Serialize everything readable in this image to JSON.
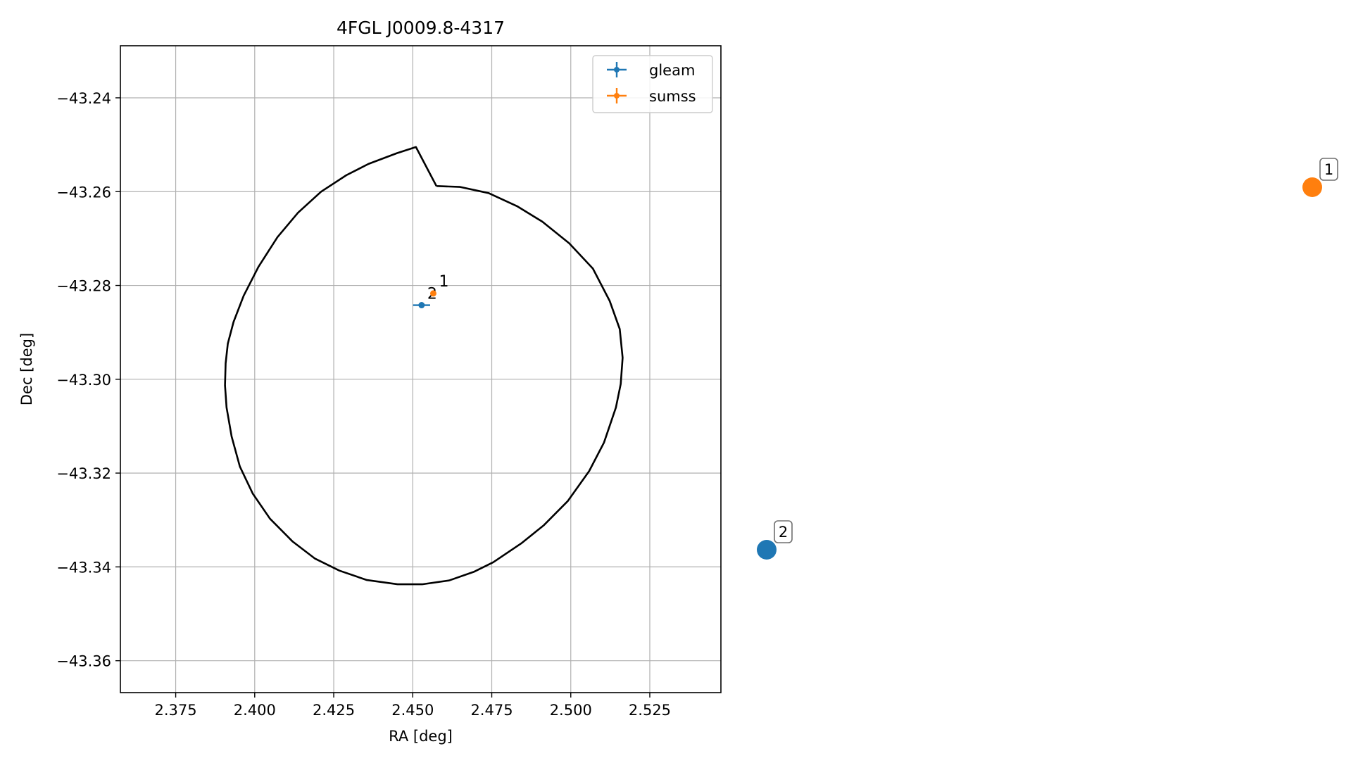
{
  "chart_data": {
    "type": "scatter",
    "title": "4FGL J0009.8-4317",
    "xlabel": "RA [deg]",
    "ylabel": "Dec [deg]",
    "xlim": [
      2.3575,
      2.5475
    ],
    "ylim": [
      -43.3668,
      -43.2289
    ],
    "xticks": [
      2.375,
      2.4,
      2.425,
      2.45,
      2.475,
      2.5,
      2.525
    ],
    "xtick_labels": [
      "2.375",
      "2.400",
      "2.425",
      "2.450",
      "2.475",
      "2.500",
      "2.525"
    ],
    "yticks": [
      -43.24,
      -43.26,
      -43.28,
      -43.3,
      -43.32,
      -43.34,
      -43.36
    ],
    "ytick_labels": [
      "−43.24",
      "−43.26",
      "−43.28",
      "−43.30",
      "−43.32",
      "−43.34",
      "−43.36"
    ],
    "grid": true,
    "legend_position": "top-right",
    "series": [
      {
        "name": "gleam",
        "color": "#1f77b4",
        "points": [
          {
            "x": 2.4528,
            "y": -43.2842,
            "xerr": 0.0027,
            "yerr": 0.0004,
            "label": "2"
          }
        ]
      },
      {
        "name": "sumss",
        "color": "#ff7f0e",
        "points": [
          {
            "x": 2.4565,
            "y": -43.2817,
            "xerr": 0.0007,
            "yerr": 0.0004,
            "label": "1"
          }
        ]
      }
    ],
    "ellipse": {
      "color": "#000000",
      "polygon": [
        [
          2.4575,
          -43.2588
        ],
        [
          2.465,
          -43.259
        ],
        [
          2.474,
          -43.2603
        ],
        [
          2.483,
          -43.2631
        ],
        [
          2.491,
          -43.2664
        ],
        [
          2.4995,
          -43.271
        ],
        [
          2.507,
          -43.2764
        ],
        [
          2.5123,
          -43.2833
        ],
        [
          2.5155,
          -43.2893
        ],
        [
          2.5164,
          -43.2954
        ],
        [
          2.5158,
          -43.301
        ],
        [
          2.5143,
          -43.306
        ],
        [
          2.5105,
          -43.3135
        ],
        [
          2.5058,
          -43.3196
        ],
        [
          2.499,
          -43.326
        ],
        [
          2.4915,
          -43.3311
        ],
        [
          2.4845,
          -43.3349
        ],
        [
          2.4755,
          -43.339
        ],
        [
          2.4695,
          -43.341
        ],
        [
          2.4615,
          -43.3429
        ],
        [
          2.453,
          -43.3437
        ],
        [
          2.4452,
          -43.3437
        ],
        [
          2.4355,
          -43.3428
        ],
        [
          2.4268,
          -43.3408
        ],
        [
          2.419,
          -43.3382
        ],
        [
          2.412,
          -43.3346
        ],
        [
          2.4048,
          -43.3297
        ],
        [
          2.3994,
          -43.3244
        ],
        [
          2.3953,
          -43.3186
        ],
        [
          2.3927,
          -43.3122
        ],
        [
          2.3911,
          -43.306
        ],
        [
          2.3906,
          -43.3013
        ],
        [
          2.3908,
          -43.2966
        ],
        [
          2.3915,
          -43.2924
        ],
        [
          2.3933,
          -43.2878
        ],
        [
          2.3965,
          -43.2822
        ],
        [
          2.4012,
          -43.276
        ],
        [
          2.4072,
          -43.2697
        ],
        [
          2.4137,
          -43.2645
        ],
        [
          2.421,
          -43.26
        ],
        [
          2.429,
          -43.2565
        ],
        [
          2.436,
          -43.2541
        ],
        [
          2.445,
          -43.2518
        ],
        [
          2.451,
          -43.2505
        ],
        [
          2.4575,
          -43.2588
        ]
      ]
    },
    "marker_annotations": [
      {
        "label": "1",
        "color": "#ff7f0e"
      },
      {
        "label": "2",
        "color": "#1f77b4"
      }
    ]
  }
}
